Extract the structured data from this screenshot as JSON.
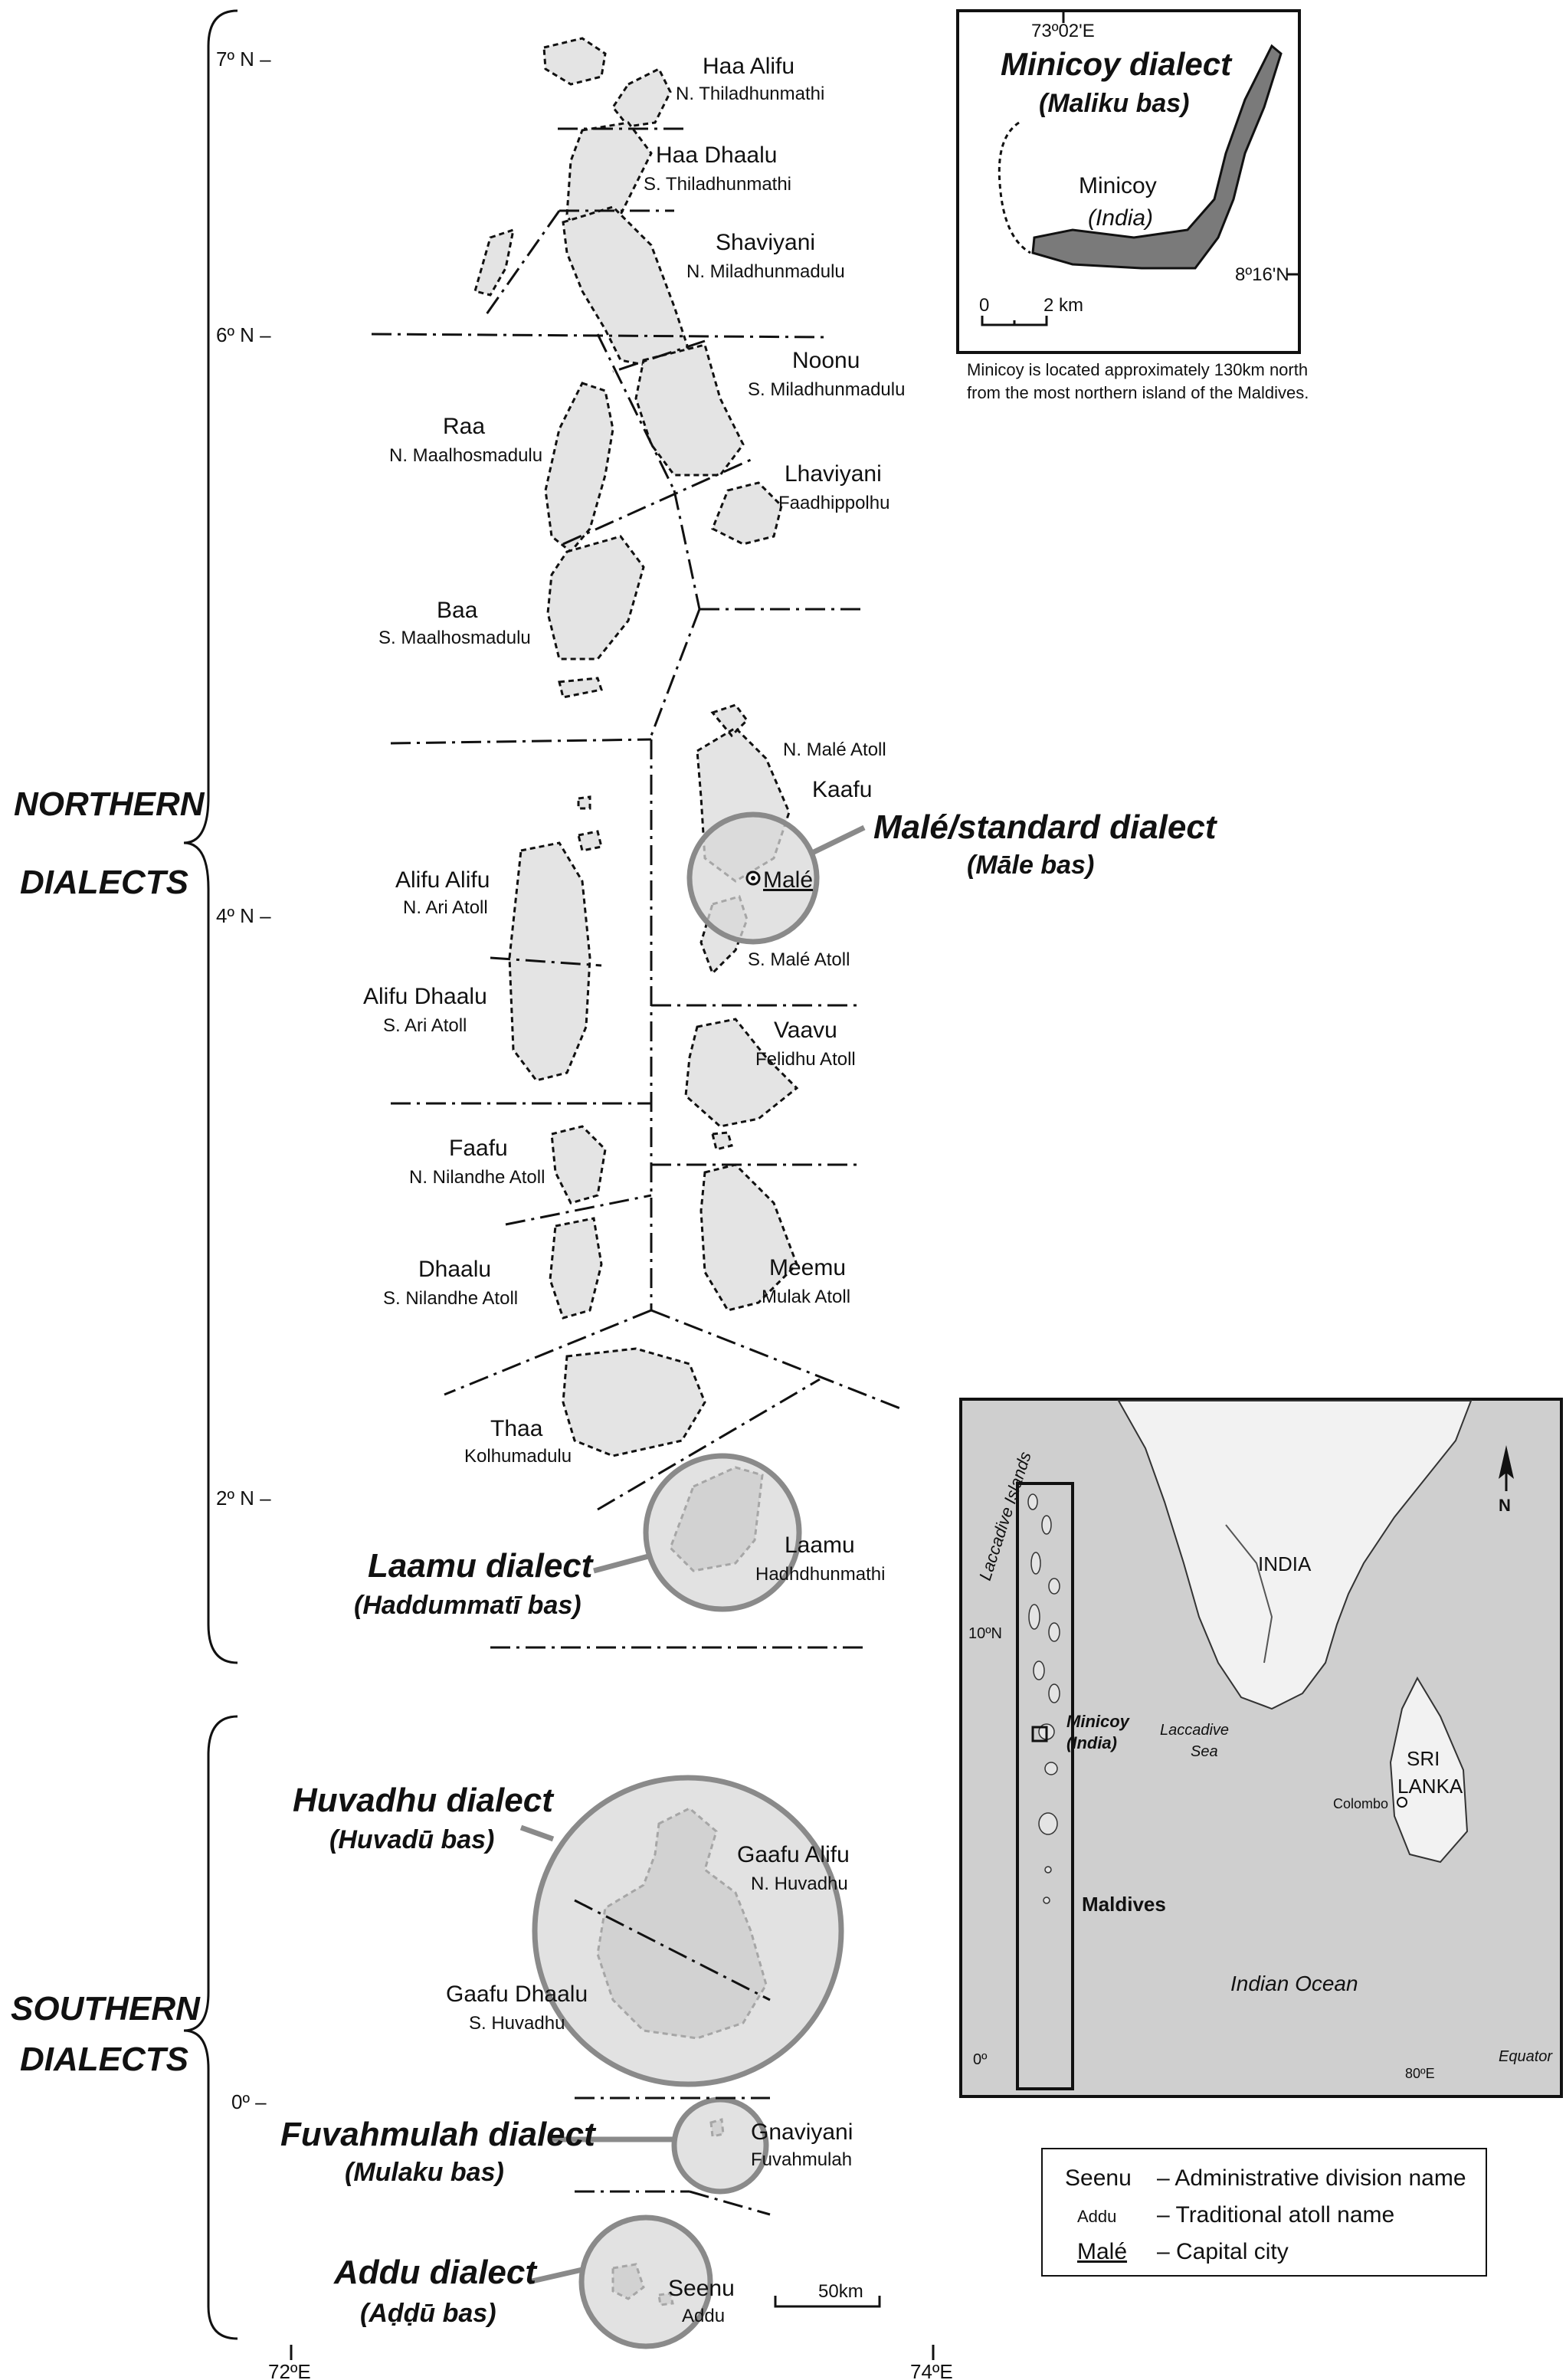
{
  "latitudes": [
    "7º N –",
    "6º N –",
    "4º N –",
    "2º N –",
    "0º –"
  ],
  "longitudes": [
    "72ºE",
    "74ºE"
  ],
  "groups": {
    "northern": [
      "NORTHERN",
      "DIALECTS"
    ],
    "southern": [
      "SOUTHERN",
      "DIALECTS"
    ]
  },
  "atolls": [
    {
      "name": "Haa Alifu",
      "trad": "N. Thiladhunmathi"
    },
    {
      "name": "Haa Dhaalu",
      "trad": "S. Thiladhunmathi"
    },
    {
      "name": "Shaviyani",
      "trad": "N. Miladhunmadulu"
    },
    {
      "name": "Noonu",
      "trad": "S. Miladhunmadulu"
    },
    {
      "name": "Raa",
      "trad": "N. Maalhosmadulu"
    },
    {
      "name": "Lhaviyani",
      "trad": "Faadhippolhu"
    },
    {
      "name": "Baa",
      "trad": "S. Maalhosmadulu"
    },
    {
      "name": "Kaafu",
      "trad": "N. Malé Atoll"
    },
    {
      "name": "",
      "trad": "S. Malé Atoll"
    },
    {
      "name": "Alifu Alifu",
      "trad": "N. Ari Atoll"
    },
    {
      "name": "Alifu Dhaalu",
      "trad": "S. Ari Atoll"
    },
    {
      "name": "Vaavu",
      "trad": "Felidhu Atoll"
    },
    {
      "name": "Faafu",
      "trad": "N. Nilandhe Atoll"
    },
    {
      "name": "Dhaalu",
      "trad": "S. Nilandhe Atoll"
    },
    {
      "name": "Meemu",
      "trad": "Mulak Atoll"
    },
    {
      "name": "Thaa",
      "trad": "Kolhumadulu"
    },
    {
      "name": "Laamu",
      "trad": "Hadhdhunmathi"
    },
    {
      "name": "Gaafu Alifu",
      "trad": "N. Huvadhu"
    },
    {
      "name": "Gaafu Dhaalu",
      "trad": "S. Huvadhu"
    },
    {
      "name": "Gnaviyani",
      "trad": "Fuvahmulah"
    },
    {
      "name": "Seenu",
      "trad": "Addu"
    }
  ],
  "capital": "Malé",
  "dialects": [
    {
      "name": "Malé/standard dialect",
      "local": "(Māle bas)"
    },
    {
      "name": "Laamu dialect",
      "local": "(Haddummatī bas)"
    },
    {
      "name": "Huvadhu dialect",
      "local": "(Huvadū bas)"
    },
    {
      "name": "Fuvahmulah dialect",
      "local": "(Mulaku bas)"
    },
    {
      "name": "Addu dialect",
      "local": "(Aḍḍū bas)"
    }
  ],
  "minicoy_inset": {
    "lon": "73º02'E",
    "title": "Minicoy dialect",
    "subtitle": "(Maliku bas)",
    "place": "Minicoy",
    "country": "(India)",
    "lat": "8º16'N",
    "scale": [
      "0",
      "2 km"
    ],
    "caption": [
      "Minicoy is located approximately 130km north",
      "from the most northern island of the Maldives."
    ]
  },
  "region_inset": {
    "islands": "Laccadive Islands",
    "india": "INDIA",
    "lat10": "10ºN",
    "minicoy": "Minicoy",
    "minicoy_country": "(India)",
    "sea": [
      "Laccadive",
      "Sea"
    ],
    "srilanka": [
      "SRI",
      "LANKA"
    ],
    "colombo": "Colombo",
    "maldives": "Maldives",
    "ocean": "Indian  Ocean",
    "lat0": "0º",
    "lon80": "80ºE",
    "equator": "Equator",
    "north": "N"
  },
  "legend": [
    {
      "sample": "Seenu",
      "desc": "– Administrative division name"
    },
    {
      "sample": "Addu",
      "desc": "– Traditional atoll name"
    },
    {
      "sample": "Malé",
      "desc": "– Capital city"
    }
  ],
  "scalebar": "50km",
  "colors": {
    "atoll": "#e4e4e4",
    "circle": "#d8d8d8",
    "circle_stroke": "#8a8a8a",
    "land": "#f2f2f2",
    "sea": "#cfcfcf"
  }
}
